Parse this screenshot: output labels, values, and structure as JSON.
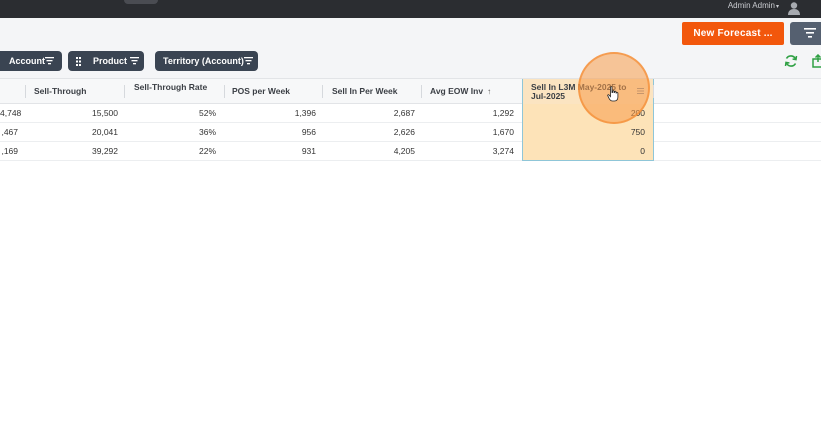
{
  "topbar": {
    "user_name": "Admin Admin",
    "user_caret": "▾"
  },
  "toolbar": {
    "new_forecast_label": "New Forecast ...",
    "filter_chips": [
      {
        "label": "Account"
      },
      {
        "label": "Product"
      },
      {
        "label": "Territory (Account)"
      }
    ]
  },
  "grid": {
    "columns": [
      {
        "label": ""
      },
      {
        "label": "Sell-Through"
      },
      {
        "label": "Sell-Through Rate"
      },
      {
        "label": "POS per Week"
      },
      {
        "label": "Sell In Per Week"
      },
      {
        "label": "Avg EOW Inv",
        "sort": "↑"
      },
      {
        "label": "Sell In L3M May-2025 to Jul-2025"
      }
    ],
    "rows": [
      [
        "4,748",
        "15,500",
        "52%",
        "1,396",
        "2,687",
        "1,292",
        "200"
      ],
      [
        ",467",
        "20,041",
        "36%",
        "956",
        "2,626",
        "1,670",
        "750"
      ],
      [
        ",169",
        "39,292",
        "22%",
        "931",
        "4,205",
        "3,274",
        "0"
      ]
    ]
  },
  "colors": {
    "accent_orange": "#f2570c",
    "chip_dark": "#3a4452",
    "highlight_cell": "#fde3b8",
    "refresh_green": "#2ea043"
  },
  "icons": [
    "user-icon",
    "filter-icon",
    "filter-lines-icon",
    "grid-icon",
    "refresh-icon",
    "export-icon",
    "column-menu-icon",
    "hand-cursor-icon"
  ]
}
